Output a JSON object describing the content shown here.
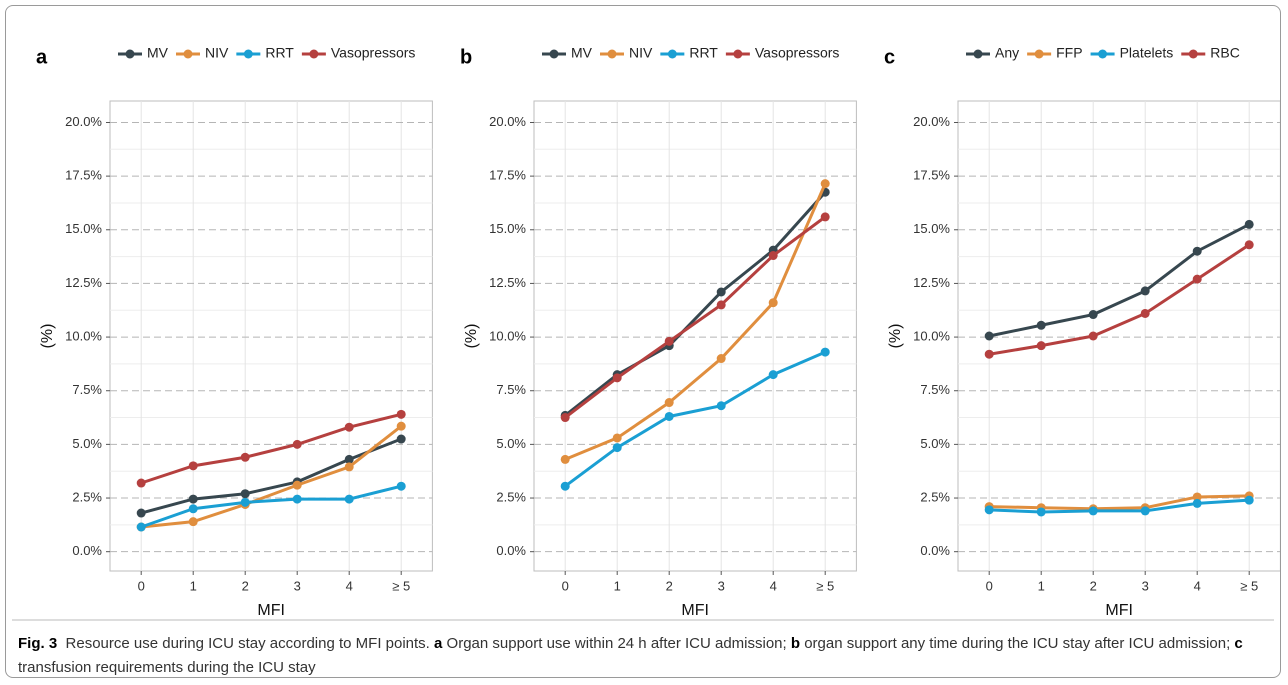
{
  "chart_data": [
    {
      "type": "line",
      "panel_label": "a",
      "ylabel": "(%)",
      "xlabel": "MFI",
      "categories": [
        "0",
        "1",
        "2",
        "3",
        "4",
        "≥ 5"
      ],
      "series": [
        {
          "name": "MV",
          "color": "#37474f",
          "values": [
            1.8,
            2.45,
            2.7,
            3.25,
            4.3,
            5.25
          ]
        },
        {
          "name": "NIV",
          "color": "#e08e3e",
          "values": [
            1.15,
            1.4,
            2.2,
            3.1,
            3.95,
            5.85
          ]
        },
        {
          "name": "RRT",
          "color": "#1a9fd3",
          "values": [
            1.15,
            2.0,
            2.3,
            2.45,
            2.45,
            3.05
          ]
        },
        {
          "name": "Vasopressors",
          "color": "#b5403f",
          "values": [
            3.2,
            4.0,
            4.4,
            5.0,
            5.8,
            6.4
          ]
        }
      ],
      "ylim": [
        -0.9,
        21.0
      ],
      "yticks": [
        {
          "value": 0,
          "label": "0.0%"
        },
        {
          "value": 2.5,
          "label": "2.5%"
        },
        {
          "value": 5,
          "label": "5.0%"
        },
        {
          "value": 7.5,
          "label": "7.5%"
        },
        {
          "value": 10,
          "label": "10.0%"
        },
        {
          "value": 12.5,
          "label": "12.5%"
        },
        {
          "value": 15,
          "label": "15.0%"
        },
        {
          "value": 17.5,
          "label": "17.5%"
        },
        {
          "value": 20,
          "label": "20.0%"
        }
      ],
      "grid": true
    },
    {
      "type": "line",
      "panel_label": "b",
      "ylabel": "(%)",
      "xlabel": "MFI",
      "categories": [
        "0",
        "1",
        "2",
        "3",
        "4",
        "≥ 5"
      ],
      "series": [
        {
          "name": "MV",
          "color": "#37474f",
          "values": [
            6.35,
            8.25,
            9.6,
            12.1,
            14.05,
            16.75
          ]
        },
        {
          "name": "NIV",
          "color": "#e08e3e",
          "values": [
            4.3,
            5.3,
            6.95,
            9.0,
            11.6,
            17.15
          ]
        },
        {
          "name": "RRT",
          "color": "#1a9fd3",
          "values": [
            3.05,
            4.85,
            6.3,
            6.8,
            8.25,
            9.3
          ]
        },
        {
          "name": "Vasopressors",
          "color": "#b5403f",
          "values": [
            6.25,
            8.1,
            9.8,
            11.5,
            13.8,
            15.6
          ]
        }
      ],
      "ylim": [
        -0.9,
        21.0
      ],
      "yticks": [
        {
          "value": 0,
          "label": "0.0%"
        },
        {
          "value": 2.5,
          "label": "2.5%"
        },
        {
          "value": 5,
          "label": "5.0%"
        },
        {
          "value": 7.5,
          "label": "7.5%"
        },
        {
          "value": 10,
          "label": "10.0%"
        },
        {
          "value": 12.5,
          "label": "12.5%"
        },
        {
          "value": 15,
          "label": "15.0%"
        },
        {
          "value": 17.5,
          "label": "17.5%"
        },
        {
          "value": 20,
          "label": "20.0%"
        }
      ],
      "grid": true
    },
    {
      "type": "line",
      "panel_label": "c",
      "ylabel": "(%)",
      "xlabel": "MFI",
      "categories": [
        "0",
        "1",
        "2",
        "3",
        "4",
        "≥ 5"
      ],
      "series": [
        {
          "name": "Any",
          "color": "#37474f",
          "values": [
            10.05,
            10.55,
            11.05,
            12.15,
            14.0,
            15.25
          ]
        },
        {
          "name": "FFP",
          "color": "#e08e3e",
          "values": [
            2.1,
            2.05,
            2.0,
            2.05,
            2.55,
            2.6
          ]
        },
        {
          "name": "Platelets",
          "color": "#1a9fd3",
          "values": [
            1.95,
            1.85,
            1.9,
            1.9,
            2.25,
            2.4
          ]
        },
        {
          "name": "RBC",
          "color": "#b5403f",
          "values": [
            9.2,
            9.6,
            10.05,
            11.1,
            12.7,
            14.3
          ]
        }
      ],
      "ylim": [
        -0.9,
        21.0
      ],
      "yticks": [
        {
          "value": 0,
          "label": "0.0%"
        },
        {
          "value": 2.5,
          "label": "2.5%"
        },
        {
          "value": 5,
          "label": "5.0%"
        },
        {
          "value": 7.5,
          "label": "7.5%"
        },
        {
          "value": 10,
          "label": "10.0%"
        },
        {
          "value": 12.5,
          "label": "12.5%"
        },
        {
          "value": 15,
          "label": "15.0%"
        },
        {
          "value": 17.5,
          "label": "17.5%"
        },
        {
          "value": 20,
          "label": "20.0%"
        }
      ],
      "grid": true
    }
  ],
  "caption": {
    "label": "Fig. 3",
    "parts": [
      {
        "text": "Resource use during ICU stay according to MFI points. ",
        "bold": false
      },
      {
        "text": "a",
        "bold": true
      },
      {
        "text": " Organ support use within 24 h after ICU admission; ",
        "bold": false
      },
      {
        "text": "b",
        "bold": true
      },
      {
        "text": " organ support any time during the ICU stay after ICU admission; ",
        "bold": false
      },
      {
        "text": "c",
        "bold": true
      },
      {
        "text": " transfusion requirements during the ICU stay",
        "bold": false
      }
    ]
  }
}
